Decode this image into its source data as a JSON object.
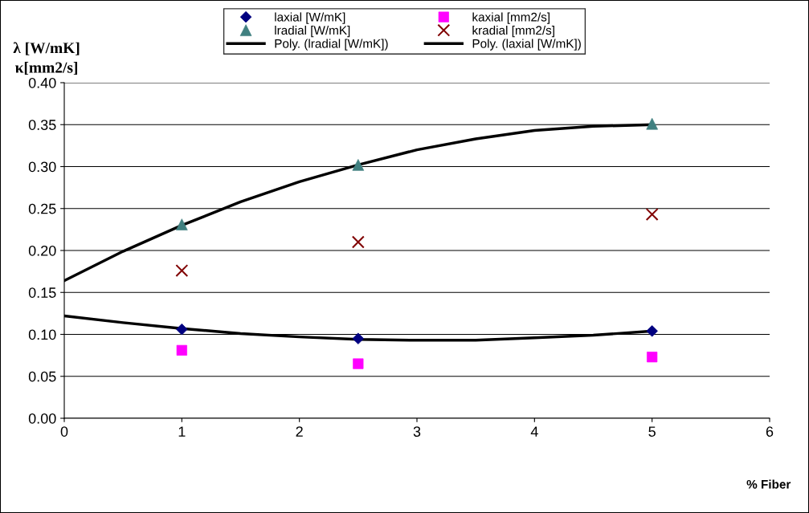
{
  "chart_data": {
    "type": "scatter",
    "ylabel": "λ [W/mK]\nκ[mm2/s]",
    "xlabel": "% Fiber",
    "xlim": [
      0,
      6
    ],
    "xticks": [
      0,
      1,
      2,
      3,
      4,
      5,
      6
    ],
    "ylim": [
      0,
      0.4
    ],
    "yticks": [
      {
        "value": 0,
        "label": "0.00"
      },
      {
        "value": 0.05,
        "label": "0.05"
      },
      {
        "value": 0.1,
        "label": "0.10"
      },
      {
        "value": 0.15,
        "label": "0.15"
      },
      {
        "value": 0.2,
        "label": "0.20"
      },
      {
        "value": 0.25,
        "label": "0.25"
      },
      {
        "value": 0.3,
        "label": "0.30"
      },
      {
        "value": 0.35,
        "label": "0.35"
      },
      {
        "value": 0.4,
        "label": "0.40"
      }
    ],
    "grid": "y",
    "legend": "top",
    "series": [
      {
        "name": "laxial [W/mK]",
        "marker": "diamond",
        "color": "#000080",
        "x": [
          1,
          2.5,
          5
        ],
        "values": [
          0.106,
          0.095,
          0.104
        ]
      },
      {
        "name": "lradial [W/mK]",
        "marker": "triangle",
        "color": "#408080",
        "x": [
          1,
          2.5,
          5
        ],
        "values": [
          0.231,
          0.302,
          0.351
        ]
      },
      {
        "name": "Poly. (lradial [W/mK])",
        "type": "line",
        "marker": "none",
        "line_style": "solid",
        "color": "#000000",
        "x": [
          0,
          0.5,
          1,
          1.5,
          2,
          2.5,
          3,
          3.5,
          4,
          4.5,
          5
        ],
        "values": [
          0.164,
          0.199,
          0.23,
          0.258,
          0.282,
          0.302,
          0.32,
          0.333,
          0.343,
          0.348,
          0.35
        ]
      },
      {
        "name": "kaxial [mm2/s]",
        "marker": "square",
        "color": "#ff00ff",
        "x": [
          1,
          2.5,
          5
        ],
        "values": [
          0.081,
          0.065,
          0.073
        ]
      },
      {
        "name": "kradial [mm2/s]",
        "marker": "cross",
        "color": "#800000",
        "x": [
          1,
          2.5,
          5
        ],
        "values": [
          0.176,
          0.21,
          0.243
        ]
      },
      {
        "name": "Poly. (laxial [W/mK])",
        "type": "line",
        "marker": "none",
        "line_style": "solid",
        "color": "#000000",
        "x": [
          0,
          0.5,
          1,
          1.5,
          2,
          2.5,
          3,
          3.5,
          4,
          4.5,
          5
        ],
        "values": [
          0.122,
          0.114,
          0.107,
          0.101,
          0.097,
          0.094,
          0.093,
          0.093,
          0.096,
          0.099,
          0.104
        ]
      }
    ]
  }
}
